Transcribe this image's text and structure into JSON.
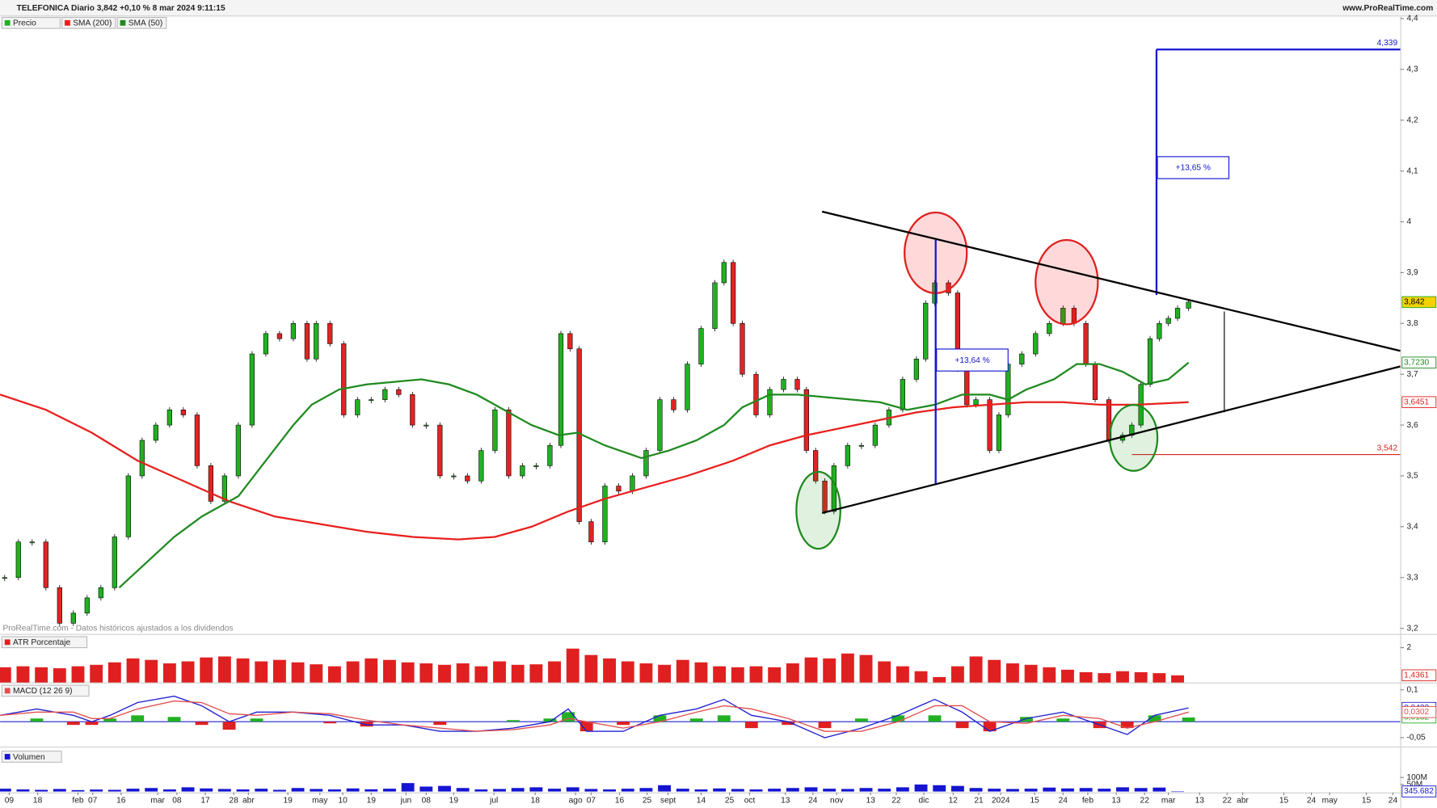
{
  "header": {
    "title": "TELEFONICA Diario 3,842 +0,10 % 8 mar 2024 9:11:15",
    "site": "www.ProRealTime.com"
  },
  "chart_data": [
    {
      "type": "candlestick",
      "xlim": [
        0,
        305.6
      ],
      "ylim": [
        3.189,
        4.404
      ],
      "xticks": [
        {
          "value": 2,
          "label": "09"
        },
        {
          "value": 8.2,
          "label": "18"
        },
        {
          "value": 17,
          "label": "feb"
        },
        {
          "value": 20.2,
          "label": "07"
        },
        {
          "value": 26.4,
          "label": "16"
        },
        {
          "value": 34.4,
          "label": "mar"
        },
        {
          "value": 38.6,
          "label": "08"
        },
        {
          "value": 44.8,
          "label": "17"
        },
        {
          "value": 51,
          "label": "28"
        },
        {
          "value": 54.2,
          "label": "abr"
        },
        {
          "value": 62.8,
          "label": "19"
        },
        {
          "value": 69.8,
          "label": "may"
        },
        {
          "value": 74.8,
          "label": "10"
        },
        {
          "value": 81,
          "label": "19"
        },
        {
          "value": 88.6,
          "label": "jun"
        },
        {
          "value": 93,
          "label": "08"
        },
        {
          "value": 99,
          "label": "19"
        },
        {
          "value": 107.8,
          "label": "jul"
        },
        {
          "value": 116.8,
          "label": "18"
        },
        {
          "value": 125.6,
          "label": "ago"
        },
        {
          "value": 129,
          "label": "07"
        },
        {
          "value": 135.2,
          "label": "16"
        },
        {
          "value": 141.2,
          "label": "25"
        },
        {
          "value": 145.8,
          "label": "sept"
        },
        {
          "value": 153,
          "label": "14"
        },
        {
          "value": 159.2,
          "label": "25"
        },
        {
          "value": 163.6,
          "label": "oct"
        },
        {
          "value": 171.4,
          "label": "13"
        },
        {
          "value": 177.4,
          "label": "24"
        },
        {
          "value": 182.6,
          "label": "nov"
        },
        {
          "value": 190,
          "label": "13"
        },
        {
          "value": 195.6,
          "label": "22"
        },
        {
          "value": 201.6,
          "label": "dic"
        },
        {
          "value": 208,
          "label": "12"
        },
        {
          "value": 213.6,
          "label": "21"
        },
        {
          "value": 218.4,
          "label": "2024"
        },
        {
          "value": 225.8,
          "label": "15"
        },
        {
          "value": 232,
          "label": "24"
        },
        {
          "value": 237.4,
          "label": "feb"
        },
        {
          "value": 243.6,
          "label": "13"
        },
        {
          "value": 249.8,
          "label": "22"
        },
        {
          "value": 255,
          "label": "mar"
        },
        {
          "value": 261.8,
          "label": "13"
        },
        {
          "value": 267.8,
          "label": "22"
        },
        {
          "value": 271.2,
          "label": "abr"
        },
        {
          "value": 280.2,
          "label": "15"
        },
        {
          "value": 286.2,
          "label": "24"
        },
        {
          "value": 290.2,
          "label": "may"
        },
        {
          "value": 298.2,
          "label": "15"
        },
        {
          "value": 304,
          "label": "24"
        }
      ],
      "yticks": [
        {
          "value": 3.2,
          "label": "3,2"
        },
        {
          "value": 3.3,
          "label": "3,3"
        },
        {
          "value": 3.4,
          "label": "3,4"
        },
        {
          "value": 3.5,
          "label": "3,5"
        },
        {
          "value": 3.6,
          "label": "3,6"
        },
        {
          "value": 3.7,
          "label": "3,7"
        },
        {
          "value": 3.8,
          "label": "3,8"
        },
        {
          "value": 3.9,
          "label": "3,9"
        },
        4,
        {
          "value": 4.1,
          "label": "4,1"
        },
        {
          "value": 4.2,
          "label": "4,2"
        },
        {
          "value": 4.3,
          "label": "4,3"
        },
        {
          "value": 4.4,
          "label": "4,4"
        }
      ],
      "series": [
        {
          "name": "Precio",
          "type": "candlestick",
          "color": "#22b022",
          "down_color": "#e02424",
          "last_label": "3,842",
          "x": [
            1,
            4,
            7,
            10,
            13,
            16,
            19,
            22,
            25,
            28,
            31,
            34,
            37,
            40,
            43,
            46,
            49,
            52,
            55,
            58,
            61,
            64,
            67,
            69,
            72,
            75,
            78,
            81,
            84,
            87,
            90,
            93,
            96,
            99,
            102,
            105,
            108,
            111,
            114,
            117,
            120,
            122.4,
            124.4,
            126.4,
            129,
            132,
            135,
            138,
            141,
            144,
            147,
            150,
            153,
            156,
            158,
            160,
            162,
            165,
            168,
            171,
            174,
            176,
            178,
            180,
            182,
            185,
            188,
            191,
            194,
            197,
            200,
            202,
            204,
            207,
            209,
            211,
            213,
            216,
            218,
            220,
            223,
            226,
            229,
            232,
            234.4,
            237,
            239,
            242,
            245,
            247,
            249,
            251,
            253,
            255,
            257,
            259.4
          ],
          "values": [
            3.3,
            3.37,
            3.37,
            3.28,
            3.21,
            3.23,
            3.26,
            3.28,
            3.38,
            3.5,
            3.57,
            3.6,
            3.63,
            3.62,
            3.52,
            3.45,
            3.5,
            3.6,
            3.74,
            3.78,
            3.77,
            3.8,
            3.73,
            3.8,
            3.76,
            3.62,
            3.65,
            3.65,
            3.67,
            3.66,
            3.6,
            3.6,
            3.5,
            3.5,
            3.49,
            3.55,
            3.63,
            3.5,
            3.52,
            3.52,
            3.56,
            3.78,
            3.75,
            3.41,
            3.37,
            3.48,
            3.47,
            3.5,
            3.55,
            3.65,
            3.63,
            3.72,
            3.79,
            3.88,
            3.92,
            3.8,
            3.7,
            3.62,
            3.67,
            3.69,
            3.67,
            3.55,
            3.49,
            3.43,
            3.52,
            3.56,
            3.56,
            3.6,
            3.63,
            3.69,
            3.73,
            3.84,
            3.88,
            3.86,
            3.71,
            3.64,
            3.65,
            3.55,
            3.62,
            3.72,
            3.74,
            3.78,
            3.8,
            3.83,
            3.8,
            3.72,
            3.65,
            3.57,
            3.58,
            3.6,
            3.68,
            3.77,
            3.8,
            3.81,
            3.83,
            3.842
          ]
        },
        {
          "name": "SMA (200)",
          "type": "line",
          "color": "#e8201e",
          "last_label": "3,6451",
          "x": [
            0,
            10,
            20,
            30,
            40,
            50,
            60,
            70,
            80,
            90,
            100,
            108,
            116,
            124,
            132,
            140,
            150,
            160,
            168,
            176,
            184,
            192,
            200,
            208,
            216,
            224,
            232,
            240,
            248,
            259.4
          ],
          "values": [
            3.66,
            3.63,
            3.585,
            3.53,
            3.49,
            3.45,
            3.42,
            3.405,
            3.39,
            3.38,
            3.375,
            3.38,
            3.4,
            3.43,
            3.455,
            3.475,
            3.5,
            3.53,
            3.56,
            3.58,
            3.595,
            3.61,
            3.625,
            3.635,
            3.64,
            3.645,
            3.645,
            3.64,
            3.64,
            3.6451
          ]
        },
        {
          "name": "SMA (50)",
          "type": "line",
          "color": "#1f8a1f",
          "last_label": "3,7230",
          "x": [
            26,
            32,
            38,
            44,
            52,
            58,
            64,
            68,
            74,
            80,
            86,
            92,
            98,
            104,
            110,
            116,
            122,
            126,
            132,
            140,
            146,
            152,
            158,
            162,
            168,
            174,
            180,
            186,
            192,
            198,
            204,
            210,
            216,
            220,
            224,
            230,
            235,
            240,
            245,
            250,
            255,
            259.4
          ],
          "values": [
            3.28,
            3.33,
            3.38,
            3.42,
            3.46,
            3.53,
            3.6,
            3.64,
            3.67,
            3.68,
            3.685,
            3.69,
            3.68,
            3.66,
            3.63,
            3.6,
            3.58,
            3.585,
            3.56,
            3.535,
            3.55,
            3.57,
            3.6,
            3.635,
            3.66,
            3.66,
            3.655,
            3.65,
            3.645,
            3.63,
            3.64,
            3.66,
            3.66,
            3.65,
            3.67,
            3.69,
            3.72,
            3.72,
            3.705,
            3.68,
            3.69,
            3.723
          ]
        }
      ],
      "levels": [
        {
          "value": 4.339,
          "label": "4,339",
          "color": "#1414d2"
        },
        {
          "value": 3.542,
          "label": "3,542",
          "color": "#e02020"
        }
      ],
      "annotations": [
        "+13,64 %",
        "+13,65 %"
      ],
      "note": "ProRealTime.com - Datos históricos ajustados a los dividendos"
    },
    {
      "type": "bar",
      "label": "ATR Porcentaje",
      "xlim": [
        0,
        305.6
      ],
      "ylim": [
        1.29,
        2.26
      ],
      "yticks": [
        2
      ],
      "x": [
        1,
        5,
        9,
        13,
        17,
        21,
        25,
        29,
        33,
        37,
        41,
        45,
        49,
        53,
        57,
        61,
        65,
        69,
        73,
        77,
        81,
        85,
        89,
        93,
        97,
        101,
        105,
        109,
        113,
        117,
        121,
        125,
        129,
        133,
        137,
        141,
        145,
        149,
        153,
        157,
        161,
        165,
        169,
        173,
        177,
        181,
        185,
        189,
        193,
        197,
        201,
        205,
        209,
        213,
        217,
        221,
        225,
        229,
        233,
        237,
        241,
        245,
        249,
        253,
        257
      ],
      "series": [
        {
          "type": "bar",
          "color": "#e02020",
          "last_label": "1,4361",
          "values": [
            1.6,
            1.62,
            1.6,
            1.58,
            1.62,
            1.65,
            1.7,
            1.78,
            1.75,
            1.68,
            1.72,
            1.8,
            1.82,
            1.78,
            1.72,
            1.75,
            1.7,
            1.66,
            1.62,
            1.72,
            1.78,
            1.75,
            1.7,
            1.68,
            1.65,
            1.68,
            1.62,
            1.72,
            1.65,
            1.66,
            1.72,
            1.98,
            1.85,
            1.78,
            1.72,
            1.68,
            1.65,
            1.75,
            1.7,
            1.62,
            1.6,
            1.62,
            1.6,
            1.68,
            1.8,
            1.78,
            1.88,
            1.85,
            1.72,
            1.62,
            1.52,
            1.4,
            1.62,
            1.82,
            1.75,
            1.68,
            1.65,
            1.6,
            1.55,
            1.5,
            1.48,
            1.52,
            1.5,
            1.48,
            1.4361
          ]
        }
      ]
    },
    {
      "type": "line",
      "label": "MACD (12 26 9)",
      "xlim": [
        0,
        305.6
      ],
      "ylim": [
        -0.078,
        0.12
      ],
      "yticks": [
        {
          "value": 0.1,
          "label": "0,1"
        },
        {
          "value": -0.05,
          "label": "-0,05"
        }
      ],
      "x": [
        0,
        8,
        16,
        20,
        24,
        30,
        38,
        44,
        50,
        56,
        64,
        72,
        80,
        88,
        96,
        104,
        112,
        120,
        124,
        128,
        136,
        144,
        152,
        158,
        164,
        172,
        180,
        188,
        196,
        204,
        210,
        216,
        224,
        232,
        240,
        246,
        252,
        259.4
      ],
      "series": [
        {
          "type": "histogram",
          "color": "#22b022",
          "down_color": "#e02020",
          "last_label": "0,0132",
          "values": [
            0.0,
            0.01,
            -0.01,
            -0.01,
            0.01,
            0.02,
            0.015,
            -0.01,
            -0.025,
            0.01,
            0.0,
            -0.005,
            -0.015,
            0.0,
            -0.01,
            0.0,
            0.005,
            0.01,
            0.03,
            -0.03,
            -0.01,
            0.02,
            0.01,
            0.02,
            -0.02,
            -0.01,
            -0.02,
            0.01,
            0.02,
            0.02,
            -0.02,
            -0.03,
            0.015,
            0.01,
            -0.02,
            -0.02,
            0.02,
            0.0132
          ]
        },
        {
          "type": "line",
          "color": "#2020d0",
          "last_label": "0,0433",
          "values": [
            0.02,
            0.04,
            0.02,
            0.0,
            0.02,
            0.06,
            0.08,
            0.05,
            0.0,
            0.03,
            0.03,
            0.02,
            -0.01,
            -0.01,
            -0.03,
            -0.03,
            -0.02,
            0.0,
            0.04,
            -0.03,
            -0.03,
            0.02,
            0.04,
            0.07,
            0.02,
            0.0,
            -0.05,
            -0.02,
            0.02,
            0.07,
            0.03,
            -0.03,
            0.01,
            0.03,
            -0.01,
            -0.04,
            0.02,
            0.0433
          ]
        },
        {
          "type": "line",
          "color": "#e05050",
          "last_label": "0,0302",
          "values": [
            0.02,
            0.03,
            0.03,
            0.01,
            0.01,
            0.04,
            0.065,
            0.06,
            0.025,
            0.02,
            0.03,
            0.025,
            0.005,
            -0.01,
            -0.02,
            -0.03,
            -0.025,
            -0.01,
            0.01,
            0.0,
            -0.02,
            0.0,
            0.03,
            0.05,
            0.04,
            0.01,
            -0.03,
            -0.03,
            0.0,
            0.05,
            0.05,
            0.0,
            -0.005,
            0.02,
            0.01,
            -0.02,
            0.0,
            0.0302
          ]
        }
      ]
    },
    {
      "type": "bar",
      "label": "Volumen",
      "xlim": [
        0,
        305.6
      ],
      "ylim": [
        0,
        300
      ],
      "yticks": [
        {
          "value": 100,
          "label": "100M"
        },
        {
          "value": 50,
          "label": "50M"
        }
      ],
      "x": [
        1,
        5,
        9,
        13,
        17,
        21,
        25,
        29,
        33,
        37,
        41,
        45,
        49,
        53,
        57,
        61,
        65,
        69,
        73,
        77,
        81,
        85,
        89,
        93,
        97,
        101,
        105,
        109,
        113,
        117,
        121,
        125,
        129,
        133,
        137,
        141,
        145,
        149,
        153,
        157,
        161,
        165,
        169,
        173,
        177,
        181,
        185,
        189,
        193,
        197,
        201,
        205,
        209,
        213,
        217,
        221,
        225,
        229,
        233,
        237,
        241,
        245,
        249,
        253,
        257
      ],
      "series": [
        {
          "type": "bar",
          "color": "#1414d2",
          "last_label": "345.682",
          "values": [
            20,
            15,
            12,
            18,
            10,
            14,
            12,
            20,
            25,
            15,
            30,
            22,
            18,
            15,
            20,
            12,
            25,
            18,
            15,
            22,
            16,
            20,
            60,
            35,
            40,
            25,
            15,
            18,
            25,
            30,
            20,
            30,
            18,
            15,
            20,
            25,
            45,
            20,
            15,
            22,
            18,
            15,
            20,
            25,
            30,
            20,
            18,
            25,
            20,
            30,
            50,
            45,
            40,
            25,
            20,
            18,
            20,
            28,
            22,
            25,
            20,
            30,
            25,
            28,
            0.345682
          ]
        }
      ]
    }
  ]
}
